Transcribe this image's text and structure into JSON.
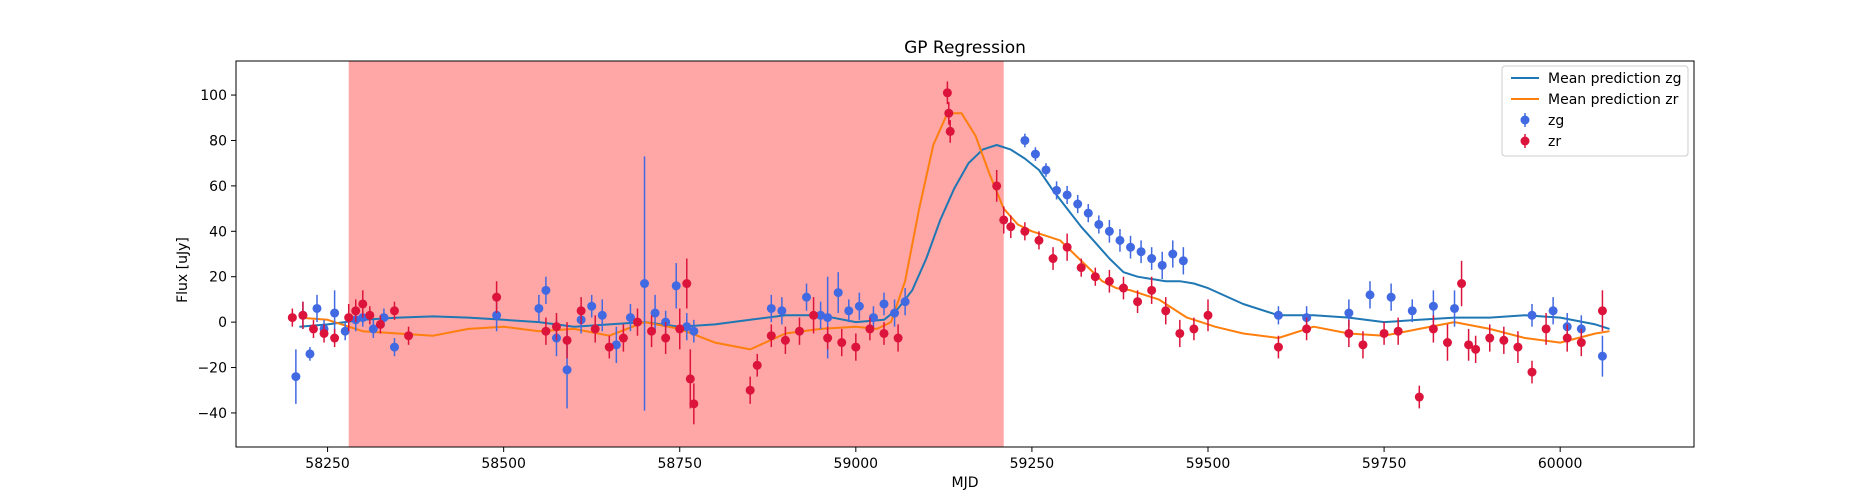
{
  "chart_data": {
    "type": "scatter",
    "title": "GP Regression",
    "xlabel": "MJD",
    "ylabel": "Flux [uJy]",
    "xlim": [
      58120,
      60190
    ],
    "ylim": [
      -55,
      115
    ],
    "xticks": [
      58250,
      58500,
      58750,
      59000,
      59250,
      59500,
      59750,
      60000
    ],
    "yticks": [
      -40,
      -20,
      0,
      20,
      40,
      60,
      80,
      100
    ],
    "shaded_span": {
      "x_start": 58280,
      "x_end": 59210,
      "color": "#ff5c5c"
    },
    "colors": {
      "zg_line": "#1f77b4",
      "zr_line": "#ff7f0e",
      "zg_points": "#4169e1",
      "zr_points": "#dc143c"
    },
    "legend": {
      "location": "top-right",
      "entries": [
        "Mean prediction zg",
        "Mean prediction zr",
        "zg",
        "zr"
      ]
    },
    "mean_prediction_zg": {
      "x": [
        58210,
        58250,
        58300,
        58350,
        58400,
        58450,
        58500,
        58550,
        58600,
        58650,
        58700,
        58750,
        58800,
        58850,
        58900,
        58950,
        59000,
        59040,
        59060,
        59080,
        59100,
        59120,
        59140,
        59160,
        59180,
        59200,
        59220,
        59240,
        59260,
        59280,
        59300,
        59320,
        59340,
        59360,
        59380,
        59400,
        59420,
        59440,
        59460,
        59480,
        59500,
        59550,
        59600,
        59650,
        59700,
        59750,
        59800,
        59850,
        59900,
        59950,
        60000,
        60050,
        60070
      ],
      "y": [
        -2,
        -1,
        1,
        2,
        2.5,
        2,
        1,
        0,
        -2,
        -1,
        0,
        -2,
        -1,
        1,
        3,
        3,
        0,
        1,
        6,
        14,
        28,
        45,
        59,
        70,
        76,
        78,
        76,
        72,
        67,
        58,
        50,
        42,
        35,
        28,
        22,
        20,
        19,
        18,
        18,
        17,
        15,
        8,
        3,
        3,
        2,
        0,
        1,
        2,
        2,
        3,
        2,
        -1,
        -3
      ]
    },
    "mean_prediction_zr": {
      "x": [
        58210,
        58250,
        58280,
        58300,
        58350,
        58400,
        58450,
        58500,
        58550,
        58600,
        58650,
        58700,
        58750,
        58800,
        58850,
        58900,
        58950,
        59000,
        59030,
        59050,
        59070,
        59090,
        59110,
        59130,
        59150,
        59170,
        59190,
        59210,
        59230,
        59250,
        59270,
        59290,
        59310,
        59330,
        59350,
        59370,
        59390,
        59410,
        59430,
        59450,
        59470,
        59490,
        59510,
        59550,
        59600,
        59650,
        59700,
        59750,
        59800,
        59850,
        59900,
        59950,
        60000,
        60050,
        60070
      ],
      "y": [
        2,
        1,
        -2,
        -4,
        -5,
        -6,
        -3,
        -2,
        -4,
        -3,
        -6,
        0,
        -3,
        -9,
        -12,
        -5,
        -3,
        -2,
        -3,
        0,
        18,
        50,
        78,
        92,
        92,
        82,
        65,
        50,
        43,
        40,
        38,
        36,
        30,
        24,
        18,
        15,
        14,
        12,
        10,
        6,
        2,
        0,
        -2,
        -5,
        -7,
        -2,
        -5,
        -6,
        -3,
        0,
        -3,
        -7,
        -9,
        -5,
        -4
      ]
    },
    "series_zg_points": {
      "x": [
        58205,
        58215,
        58225,
        58235,
        58245,
        58260,
        58275,
        58290,
        58300,
        58315,
        58330,
        58345,
        58490,
        58550,
        58560,
        58575,
        58590,
        58610,
        58625,
        58640,
        58660,
        58680,
        58700,
        58715,
        58730,
        58745,
        58760,
        58770,
        58880,
        58895,
        58930,
        58950,
        58960,
        58975,
        58990,
        59005,
        59025,
        59040,
        59055,
        59070,
        59240,
        59255,
        59270,
        59285,
        59300,
        59315,
        59330,
        59345,
        59360,
        59375,
        59390,
        59405,
        59420,
        59435,
        59450,
        59465,
        59600,
        59640,
        59700,
        59730,
        59760,
        59790,
        59820,
        59850,
        59960,
        59990,
        60010,
        60030,
        60060
      ],
      "y": [
        -24,
        3,
        -14,
        6,
        -3,
        4,
        -4,
        1,
        2,
        -3,
        2,
        -11,
        3,
        6,
        14,
        -7,
        -21,
        1,
        7,
        3,
        -10,
        2,
        17,
        4,
        0,
        16,
        -2,
        -4,
        6,
        5,
        11,
        3,
        2,
        13,
        5,
        7,
        2,
        8,
        4,
        9,
        80,
        74,
        67,
        58,
        56,
        52,
        48,
        43,
        40,
        36,
        33,
        31,
        28,
        25,
        30,
        27,
        3,
        2,
        4,
        12,
        11,
        5,
        7,
        6,
        3,
        5,
        -2,
        -3,
        -15
      ],
      "err": [
        12,
        6,
        3,
        6,
        4,
        10,
        4,
        5,
        4,
        4,
        4,
        4,
        7,
        6,
        6,
        8,
        17,
        6,
        5,
        7,
        8,
        6,
        56,
        8,
        5,
        10,
        6,
        5,
        6,
        6,
        6,
        6,
        18,
        9,
        5,
        6,
        5,
        5,
        6,
        6,
        3,
        3,
        3,
        4,
        4,
        4,
        4,
        4,
        5,
        5,
        5,
        5,
        5,
        6,
        6,
        6,
        4,
        5,
        6,
        6,
        6,
        5,
        7,
        8,
        5,
        6,
        6,
        6,
        9
      ]
    },
    "series_zr_points": {
      "x": [
        58200,
        58215,
        58230,
        58245,
        58260,
        58280,
        58290,
        58300,
        58310,
        58325,
        58345,
        58365,
        58490,
        58560,
        58575,
        58590,
        58610,
        58630,
        58650,
        58670,
        58690,
        58710,
        58730,
        58750,
        58760,
        58765,
        58770,
        58850,
        58860,
        58880,
        58900,
        58920,
        58940,
        58960,
        58980,
        59000,
        59020,
        59040,
        59060,
        59130,
        59132,
        59134,
        59200,
        59210,
        59220,
        59240,
        59260,
        59280,
        59300,
        59320,
        59340,
        59360,
        59380,
        59400,
        59420,
        59440,
        59460,
        59480,
        59500,
        59600,
        59640,
        59700,
        59720,
        59750,
        59770,
        59800,
        59820,
        59840,
        59860,
        59870,
        59880,
        59900,
        59920,
        59940,
        59960,
        59980,
        60010,
        60030,
        60060
      ],
      "y": [
        2,
        3,
        -3,
        -5,
        -7,
        2,
        5,
        8,
        3,
        -1,
        5,
        -6,
        11,
        -4,
        -2,
        -8,
        5,
        -3,
        -11,
        -7,
        0,
        -4,
        -7,
        -3,
        17,
        -25,
        -36,
        -30,
        -19,
        -6,
        -8,
        -4,
        3,
        -7,
        -9,
        -11,
        -3,
        -5,
        -7,
        101,
        92,
        84,
        60,
        45,
        42,
        40,
        36,
        28,
        33,
        24,
        20,
        18,
        15,
        9,
        14,
        5,
        -5,
        -3,
        3,
        -11,
        -3,
        -5,
        -10,
        -5,
        -4,
        -33,
        -3,
        -9,
        17,
        -10,
        -12,
        -7,
        -8,
        -11,
        -22,
        -3,
        -7,
        -9,
        5
      ],
      "err": [
        4,
        6,
        4,
        4,
        4,
        6,
        5,
        6,
        4,
        4,
        4,
        4,
        7,
        6,
        6,
        8,
        6,
        6,
        5,
        6,
        6,
        7,
        7,
        9,
        11,
        13,
        9,
        6,
        5,
        5,
        6,
        6,
        8,
        5,
        6,
        6,
        5,
        5,
        6,
        5,
        5,
        5,
        7,
        6,
        5,
        4,
        4,
        5,
        6,
        4,
        4,
        5,
        5,
        5,
        6,
        6,
        6,
        5,
        7,
        5,
        5,
        6,
        6,
        5,
        6,
        5,
        6,
        8,
        10,
        7,
        6,
        6,
        6,
        7,
        5,
        7,
        6,
        6,
        9
      ]
    }
  }
}
